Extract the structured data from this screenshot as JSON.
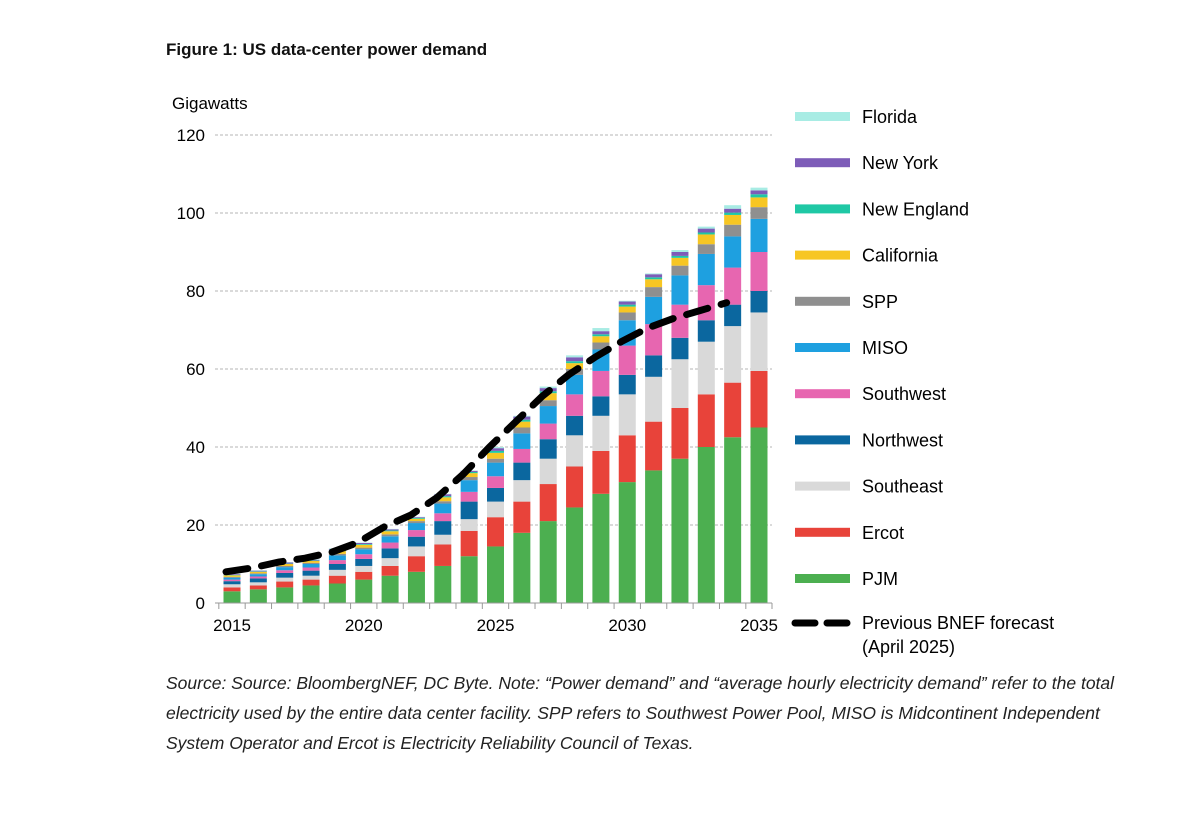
{
  "chart_data": {
    "type": "bar",
    "stacked": true,
    "title": "Figure 1:  US data-center power demand",
    "ylabel": "Gigawatts",
    "xlabel": "",
    "ylim": [
      0,
      120
    ],
    "yticks": [
      0,
      20,
      40,
      60,
      80,
      100,
      120
    ],
    "xticks": [
      "2015",
      "2020",
      "2025",
      "2030",
      "2035"
    ],
    "grid": true,
    "legend_position": "right",
    "categories": [
      2015,
      2016,
      2017,
      2018,
      2019,
      2020,
      2021,
      2022,
      2023,
      2024,
      2025,
      2026,
      2027,
      2028,
      2029,
      2030,
      2031,
      2032,
      2033,
      2034,
      2035
    ],
    "series": [
      {
        "name": "PJM",
        "color": "#4caf50",
        "values": [
          3,
          3.5,
          4,
          4.5,
          5,
          6,
          7,
          8,
          9.5,
          12,
          14.5,
          18,
          21,
          24.5,
          28,
          31,
          34,
          37,
          40,
          42.5,
          45
        ]
      },
      {
        "name": "Ercot",
        "color": "#e8433a",
        "values": [
          1,
          1,
          1.5,
          1.5,
          2,
          2,
          2.5,
          4,
          5.5,
          6.5,
          7.5,
          8,
          9.5,
          10.5,
          11,
          12,
          12.5,
          13,
          13.5,
          14,
          14.5
        ]
      },
      {
        "name": "Southeast",
        "color": "#d9d9d9",
        "values": [
          0.8,
          0.8,
          1,
          1,
          1.5,
          1.5,
          2,
          2.5,
          2.5,
          3,
          4,
          5.5,
          6.5,
          8,
          9,
          10.5,
          11.5,
          12.5,
          13.5,
          14.5,
          15
        ]
      },
      {
        "name": "Northwest",
        "color": "#0b679f",
        "values": [
          0.8,
          1,
          1.2,
          1.3,
          1.5,
          1.8,
          2.5,
          2.5,
          3.5,
          4.5,
          3.5,
          4.5,
          5,
          5,
          5,
          5,
          5.5,
          5.5,
          5.5,
          5.5,
          5.5
        ]
      },
      {
        "name": "Southwest",
        "color": "#e766b0",
        "values": [
          0.4,
          0.5,
          0.7,
          0.8,
          1,
          1.2,
          1.5,
          1.7,
          2,
          2.5,
          3,
          3.5,
          4,
          5.5,
          6.5,
          7.5,
          8,
          8.5,
          9,
          9.5,
          10
        ]
      },
      {
        "name": "MISO",
        "color": "#1ea0e0",
        "values": [
          0.5,
          0.6,
          0.8,
          0.9,
          1.2,
          1.3,
          1.6,
          1.8,
          2.5,
          3,
          3.5,
          4,
          4.5,
          5,
          5.5,
          6.5,
          7,
          7.5,
          8,
          8,
          8.5
        ]
      },
      {
        "name": "SPP",
        "color": "#8f8f8f",
        "values": [
          0.2,
          0.2,
          0.3,
          0.3,
          0.4,
          0.4,
          0.5,
          0.5,
          0.6,
          0.8,
          1,
          1.5,
          1.5,
          1.5,
          1.8,
          2,
          2.5,
          2.5,
          2.5,
          3,
          3
        ]
      },
      {
        "name": "California",
        "color": "#f7c623",
        "values": [
          0.4,
          0.4,
          0.5,
          0.5,
          0.7,
          0.7,
          0.8,
          0.6,
          1,
          1,
          1.5,
          1.5,
          1.8,
          1.5,
          1.6,
          1.5,
          2,
          2,
          2.5,
          2.5,
          2.5
        ]
      },
      {
        "name": "New England",
        "color": "#1fc8a5",
        "values": [
          0.1,
          0.1,
          0.1,
          0.1,
          0.2,
          0.2,
          0.2,
          0.2,
          0.3,
          0.3,
          0.5,
          0.5,
          0.5,
          0.5,
          0.5,
          0.5,
          0.5,
          0.5,
          0.5,
          0.6,
          0.8
        ]
      },
      {
        "name": "New York",
        "color": "#7d5cb8",
        "values": [
          0.2,
          0.2,
          0.3,
          0.2,
          0.3,
          0.3,
          0.3,
          0.2,
          0.5,
          0.3,
          0.7,
          0.8,
          0.8,
          1,
          0.8,
          0.8,
          0.8,
          1,
          1,
          1,
          1
        ]
      },
      {
        "name": "Florida",
        "color": "#a8ece4",
        "values": [
          0.1,
          0.1,
          0.1,
          0.1,
          0.2,
          0.1,
          0.1,
          0.1,
          0.1,
          0.1,
          0.3,
          0.2,
          0.4,
          0.5,
          0.8,
          0.2,
          0.2,
          0.5,
          0.5,
          0.9,
          0.7
        ]
      }
    ],
    "line_series": {
      "name": "Previous BNEF forecast (April 2025)",
      "legend_lines": [
        "Previous BNEF forecast",
        "(April 2025)"
      ],
      "color": "#000000",
      "style": "dashed",
      "x": [
        2015,
        2016,
        2017,
        2018,
        2019,
        2020,
        2021,
        2022,
        2023,
        2024,
        2025,
        2026,
        2027,
        2028,
        2029,
        2030,
        2031,
        2032,
        2033,
        2034
      ],
      "values": [
        8,
        9,
        10.5,
        11.5,
        13,
        15.5,
        19.5,
        22.5,
        27,
        33,
        40,
        46.5,
        53,
        58.5,
        63,
        67,
        70.5,
        73,
        75,
        77
      ]
    },
    "legend_order": [
      "Florida",
      "New York",
      "New England",
      "California",
      "SPP",
      "MISO",
      "Southwest",
      "Northwest",
      "Southeast",
      "Ercot",
      "PJM"
    ]
  },
  "note": "Source: Source: BloombergNEF, DC Byte. Note: “Power demand” and “average hourly electricity demand” refer to the total electricity used by the entire data center facility. SPP refers to Southwest Power Pool, MISO is Midcontinent Independent System Operator and Ercot is Electricity Reliability Council of Texas."
}
